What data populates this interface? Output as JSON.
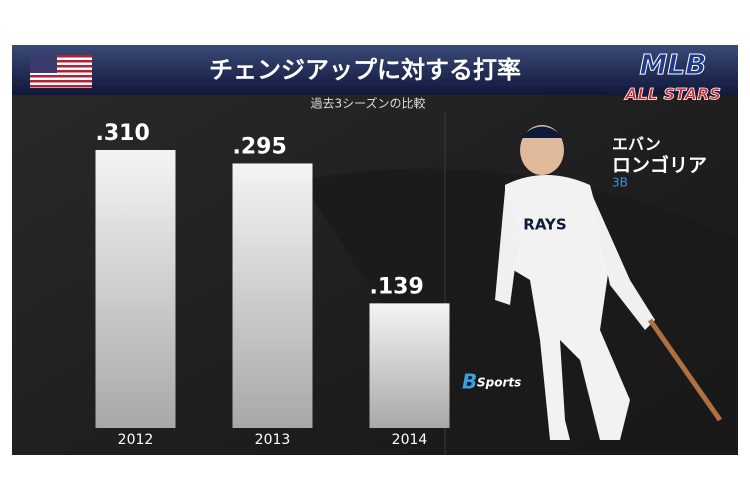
{
  "chart_data": {
    "type": "bar",
    "title": "チェンジアップに対する打率",
    "subtitle": "過去3シーズンの比較",
    "categories": [
      "2012",
      "2013",
      "2014"
    ],
    "values": [
      0.31,
      0.295,
      0.139
    ],
    "value_labels": [
      ".310",
      ".295",
      ".139"
    ],
    "color": "#d9d9d9"
  },
  "player": {
    "name_line1": "エバン",
    "name_line2": "ロンゴリア",
    "position": "3B"
  },
  "logo": {
    "line1": "MLB",
    "line2": "ALL STARS"
  },
  "watermark": {
    "mark": "B",
    "text": "Sports"
  }
}
